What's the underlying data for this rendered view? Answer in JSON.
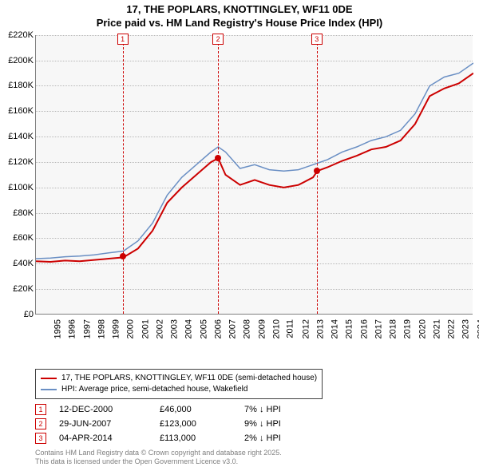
{
  "title_line1": "17, THE POPLARS, KNOTTINGLEY, WF11 0DE",
  "title_line2": "Price paid vs. HM Land Registry's House Price Index (HPI)",
  "chart": {
    "type": "line",
    "background_color": "#f7f7f7",
    "grid_color": "#b8b8b8",
    "ylim": [
      0,
      220000
    ],
    "ytick_step": 20000,
    "yticks": [
      "£0",
      "£20K",
      "£40K",
      "£60K",
      "£80K",
      "£100K",
      "£120K",
      "£140K",
      "£160K",
      "£180K",
      "£200K",
      "£220K"
    ],
    "xlim": [
      1995,
      2025
    ],
    "xticks": [
      "1995",
      "1996",
      "1997",
      "1998",
      "1999",
      "2000",
      "2001",
      "2002",
      "2003",
      "2004",
      "2005",
      "2006",
      "2007",
      "2008",
      "2009",
      "2010",
      "2011",
      "2012",
      "2013",
      "2014",
      "2015",
      "2016",
      "2017",
      "2018",
      "2019",
      "2020",
      "2021",
      "2022",
      "2023",
      "2024"
    ],
    "series": [
      {
        "name": "HPI: Average price, semi-detached house, Wakefield",
        "color": "#6a8fc4",
        "line_width": 1.5,
        "points": [
          [
            1995,
            44000
          ],
          [
            1996,
            44500
          ],
          [
            1997,
            45500
          ],
          [
            1998,
            46000
          ],
          [
            1999,
            47000
          ],
          [
            2000,
            48500
          ],
          [
            2001,
            50000
          ],
          [
            2002,
            58000
          ],
          [
            2003,
            72000
          ],
          [
            2004,
            94000
          ],
          [
            2005,
            108000
          ],
          [
            2006,
            118000
          ],
          [
            2007,
            128000
          ],
          [
            2007.5,
            132000
          ],
          [
            2008,
            128000
          ],
          [
            2009,
            115000
          ],
          [
            2010,
            118000
          ],
          [
            2011,
            114000
          ],
          [
            2012,
            113000
          ],
          [
            2013,
            114000
          ],
          [
            2014,
            118000
          ],
          [
            2015,
            122000
          ],
          [
            2016,
            128000
          ],
          [
            2017,
            132000
          ],
          [
            2018,
            137000
          ],
          [
            2019,
            140000
          ],
          [
            2020,
            145000
          ],
          [
            2021,
            158000
          ],
          [
            2022,
            180000
          ],
          [
            2023,
            187000
          ],
          [
            2024,
            190000
          ],
          [
            2025,
            198000
          ]
        ]
      },
      {
        "name": "17, THE POPLARS, KNOTTINGLEY, WF11 0DE (semi-detached house)",
        "color": "#cc0000",
        "line_width": 2,
        "points": [
          [
            1995,
            42000
          ],
          [
            1996,
            41500
          ],
          [
            1997,
            42500
          ],
          [
            1998,
            42000
          ],
          [
            1999,
            43000
          ],
          [
            2000,
            44000
          ],
          [
            2001,
            45000
          ],
          [
            2002,
            52000
          ],
          [
            2003,
            66000
          ],
          [
            2004,
            88000
          ],
          [
            2005,
            100000
          ],
          [
            2006,
            110000
          ],
          [
            2007,
            120000
          ],
          [
            2007.5,
            123000
          ],
          [
            2008,
            110000
          ],
          [
            2009,
            102000
          ],
          [
            2010,
            106000
          ],
          [
            2011,
            102000
          ],
          [
            2012,
            100000
          ],
          [
            2013,
            102000
          ],
          [
            2014,
            108000
          ],
          [
            2014.3,
            113000
          ],
          [
            2015,
            116000
          ],
          [
            2016,
            121000
          ],
          [
            2017,
            125000
          ],
          [
            2018,
            130000
          ],
          [
            2019,
            132000
          ],
          [
            2020,
            137000
          ],
          [
            2021,
            150000
          ],
          [
            2022,
            172000
          ],
          [
            2023,
            178000
          ],
          [
            2024,
            182000
          ],
          [
            2025,
            190000
          ]
        ]
      }
    ],
    "sale_markers": [
      {
        "n": "1",
        "year": 2000.95,
        "price": 46000
      },
      {
        "n": "2",
        "year": 2007.49,
        "price": 123000
      },
      {
        "n": "3",
        "year": 2014.26,
        "price": 113000
      }
    ]
  },
  "legend": {
    "series1_label": "17, THE POPLARS, KNOTTINGLEY, WF11 0DE (semi-detached house)",
    "series1_color": "#cc0000",
    "series2_label": "HPI: Average price, semi-detached house, Wakefield",
    "series2_color": "#6a8fc4"
  },
  "annotations": [
    {
      "n": "1",
      "date": "12-DEC-2000",
      "price": "£46,000",
      "pct": "7% ↓ HPI"
    },
    {
      "n": "2",
      "date": "29-JUN-2007",
      "price": "£123,000",
      "pct": "9% ↓ HPI"
    },
    {
      "n": "3",
      "date": "04-APR-2014",
      "price": "£113,000",
      "pct": "2% ↓ HPI"
    }
  ],
  "footer_line1": "Contains HM Land Registry data © Crown copyright and database right 2025.",
  "footer_line2": "This data is licensed under the Open Government Licence v3.0."
}
